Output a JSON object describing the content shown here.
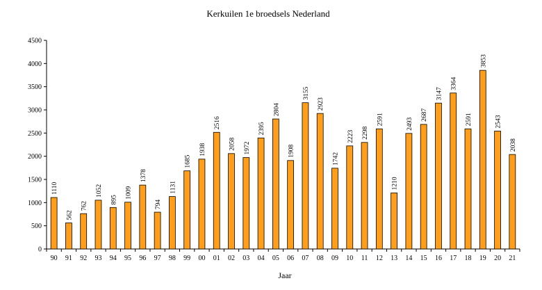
{
  "chart_data": {
    "type": "bar",
    "title": "Kerkuilen 1e broedsels Nederland",
    "xlabel": "Jaar",
    "ylabel": "",
    "ylim": [
      0,
      4500
    ],
    "yticks": [
      0,
      500,
      1000,
      1500,
      2000,
      2500,
      3000,
      3500,
      4000,
      4500
    ],
    "grid": false,
    "bar_color": "#ff9e1b",
    "categories": [
      "90",
      "91",
      "92",
      "93",
      "94",
      "95",
      "96",
      "97",
      "98",
      "99",
      "00",
      "01",
      "02",
      "03",
      "04",
      "05",
      "06",
      "07",
      "08",
      "09",
      "10",
      "11",
      "12",
      "13",
      "14",
      "15",
      "16",
      "17",
      "18",
      "19",
      "20",
      "21"
    ],
    "values": [
      1110,
      562,
      762,
      1052,
      895,
      1009,
      1378,
      794,
      1131,
      1685,
      1938,
      2516,
      2058,
      1972,
      2395,
      2804,
      1908,
      3155,
      2923,
      1742,
      2223,
      2298,
      2591,
      1210,
      2493,
      2687,
      3147,
      3364,
      2591,
      3853,
      2543,
      2038
    ]
  }
}
